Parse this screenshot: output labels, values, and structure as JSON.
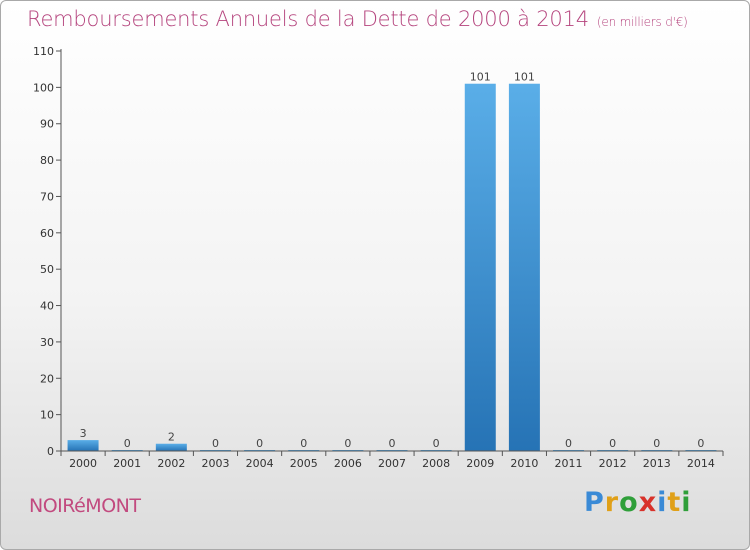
{
  "chart_data": {
    "type": "bar",
    "title": "Remboursements Annuels de la Dette de 2000 à 2014",
    "subtitle": "(en milliers d'€)",
    "xlabel": "",
    "ylabel": "",
    "ylim": [
      0,
      110
    ],
    "yticks": [
      0,
      10,
      20,
      30,
      40,
      50,
      60,
      70,
      80,
      90,
      100,
      110
    ],
    "categories": [
      "2000",
      "2001",
      "2002",
      "2003",
      "2004",
      "2005",
      "2006",
      "2007",
      "2008",
      "2009",
      "2010",
      "2011",
      "2012",
      "2013",
      "2014"
    ],
    "values": [
      3,
      0,
      2,
      0,
      0,
      0,
      0,
      0,
      0,
      101,
      101,
      0,
      0,
      0,
      0
    ],
    "data_labels": [
      "3",
      "0",
      "2",
      "0",
      "0",
      "0",
      "0",
      "0",
      "0",
      "101",
      "101",
      "0",
      "0",
      "0",
      "0"
    ],
    "bar_color_top": "#5aaee8",
    "bar_color_bottom": "#2673b5"
  },
  "header": {
    "title": "Remboursements Annuels de la Dette de 2000 à 2014",
    "subtitle": "(en milliers d'€)"
  },
  "footer": {
    "commune": "NOIRéMONT",
    "logo_letters": [
      "P",
      "r",
      "o",
      "x",
      "i",
      "t",
      "i"
    ],
    "logo_colors": [
      "#3a8ad6",
      "#e0a018",
      "#2f9f3a",
      "#d8322a",
      "#3a8ad6",
      "#e0a018",
      "#2f9f3a"
    ]
  }
}
